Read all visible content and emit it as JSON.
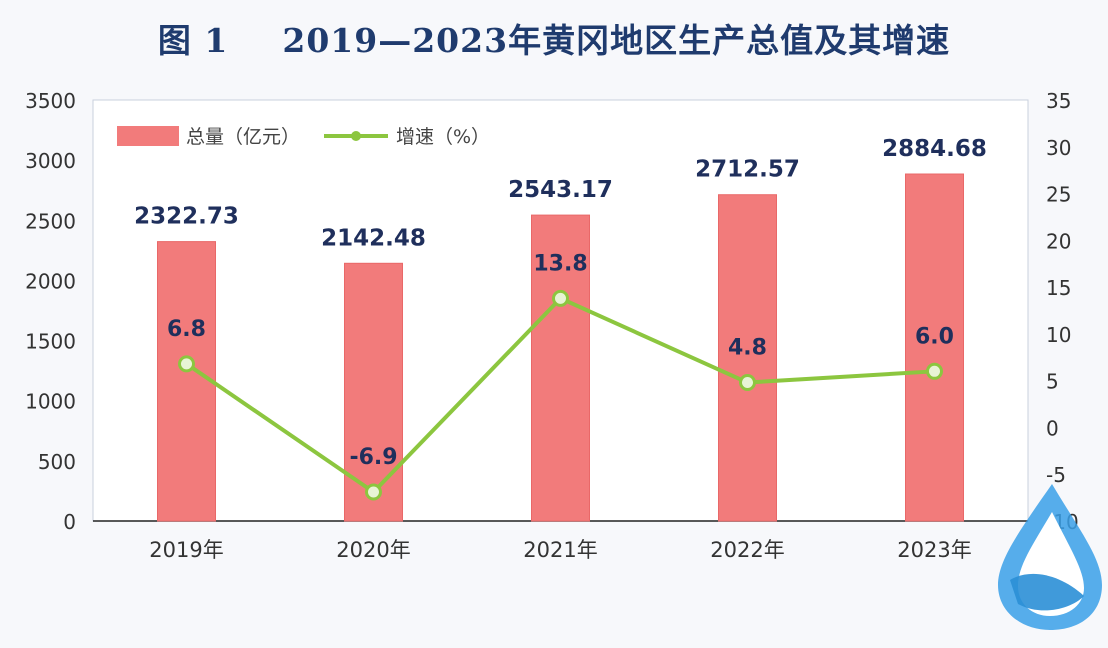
{
  "title": {
    "figure_number": "图 1",
    "text": "2019—2023年黄冈地区生产总值及其增速"
  },
  "colors": {
    "bar": "#f27b7b",
    "bar_edge": "#e96868",
    "line": "#8cc63f",
    "marker_fill": "#e8f4d5",
    "label": "#1f2f5c",
    "axis_text": "#333333",
    "title": "#1f3b6e"
  },
  "chart_data": {
    "type": "bar",
    "categories": [
      "2019年",
      "2020年",
      "2021年",
      "2022年",
      "2023年"
    ],
    "series": [
      {
        "name": "总量（亿元）",
        "type": "bar",
        "axis": "left",
        "values": [
          2322.73,
          2142.48,
          2543.17,
          2712.57,
          2884.68
        ],
        "labels": [
          "2322.73",
          "2142.48",
          "2543.17",
          "2712.57",
          "2884.68"
        ]
      },
      {
        "name": "增速（%）",
        "type": "line",
        "axis": "right",
        "values": [
          6.8,
          -6.9,
          13.8,
          4.8,
          6.0
        ],
        "labels": [
          "6.8",
          "-6.9",
          "13.8",
          "4.8",
          "6.0"
        ]
      }
    ],
    "y_left": {
      "range": [
        0,
        3500
      ],
      "ticks": [
        0,
        500,
        1000,
        1500,
        2000,
        2500,
        3000,
        3500
      ],
      "tick_labels": [
        "0",
        "500",
        "1000",
        "1500",
        "2000",
        "2500",
        "3000",
        "3500"
      ]
    },
    "y_right": {
      "range": [
        -10,
        35
      ],
      "ticks": [
        -10,
        -5,
        0,
        5,
        10,
        15,
        20,
        25,
        30,
        35
      ],
      "tick_labels": [
        "-10",
        "-5",
        "0",
        "5",
        "10",
        "15",
        "20",
        "25",
        "30",
        "35"
      ]
    },
    "grid": false,
    "legend": "top-left"
  }
}
